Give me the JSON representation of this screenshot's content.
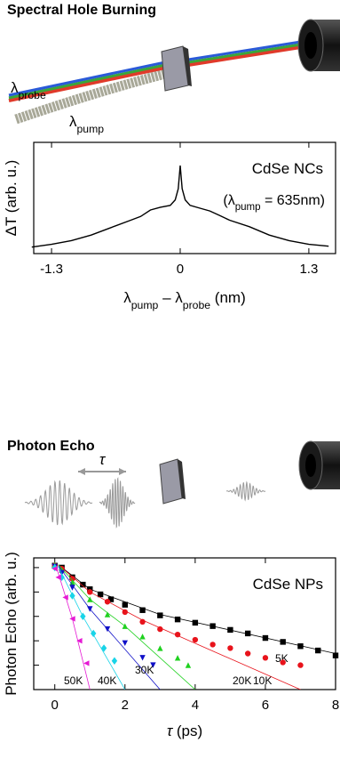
{
  "diagrams": [
    {
      "title": "Spectral Hole Burning",
      "probe_label": [
        "λ",
        "probe"
      ],
      "pump_label": [
        "λ",
        "pump"
      ]
    },
    {
      "title": "Photon Echo",
      "delay_label": "τ"
    }
  ],
  "chart_data": [
    {
      "type": "line",
      "title": "CdSe NCs",
      "annotation": [
        "(λ",
        "pump",
        " = 635nm)"
      ],
      "xlabel": [
        "λ",
        "pump",
        " – λ",
        "probe",
        " (nm)"
      ],
      "ylabel": "ΔT (arb. u.)",
      "x": [
        -1.5,
        -1.3,
        -1.1,
        -0.9,
        -0.7,
        -0.5,
        -0.4,
        -0.3,
        -0.2,
        -0.1,
        -0.05,
        -0.02,
        0,
        0.02,
        0.05,
        0.1,
        0.2,
        0.3,
        0.4,
        0.5,
        0.7,
        0.9,
        1.1,
        1.3,
        1.5
      ],
      "values": [
        0.07,
        0.1,
        0.14,
        0.2,
        0.28,
        0.36,
        0.4,
        0.47,
        0.5,
        0.52,
        0.58,
        0.7,
        0.95,
        0.7,
        0.58,
        0.52,
        0.49,
        0.46,
        0.41,
        0.36,
        0.29,
        0.2,
        0.14,
        0.1,
        0.08
      ],
      "color": "#000000",
      "xlim": [
        -1.48,
        1.57
      ],
      "ylim": [
        0,
        1.2
      ],
      "xticks": [
        -1.3,
        0,
        1.3
      ]
    },
    {
      "type": "scatter",
      "title": "CdSe NPs",
      "xlabel": [
        "τ",
        " (ps)"
      ],
      "ylabel": "Photon Echo (arb. u.)",
      "log_y": true,
      "xlim": [
        -0.6,
        8
      ],
      "ylim": [
        1e-05,
        2.5
      ],
      "xticks": [
        0,
        2,
        4,
        6,
        8
      ],
      "yticks": [
        1e-05,
        0.0001,
        0.001,
        0.01,
        0.1,
        1
      ],
      "series": [
        {
          "name": "5K",
          "color": "#000000",
          "marker": "square",
          "x": [
            0,
            0.2,
            0.5,
            0.8,
            1,
            1.3,
            1.6,
            2,
            2.5,
            3,
            3.5,
            4,
            4.5,
            5,
            5.5,
            6,
            6.5,
            7,
            7.5,
            8
          ],
          "values": [
            1.2,
            1.0,
            0.4,
            0.2,
            0.13,
            0.08,
            0.05,
            0.03,
            0.018,
            0.011,
            0.0075,
            0.0055,
            0.004,
            0.0028,
            0.002,
            0.0013,
            0.0009,
            0.0006,
            0.0004,
            0.00025
          ],
          "fit_x": [
            0.1,
            1,
            3,
            8
          ],
          "fit_values": [
            1.3,
            0.13,
            0.012,
            0.0003
          ]
        },
        {
          "name": "10K",
          "color": "#e8131b",
          "marker": "circle",
          "x": [
            0,
            0.2,
            0.5,
            1,
            1.5,
            2,
            2.5,
            3,
            3.5,
            4,
            4.5,
            5,
            5.5,
            6,
            6.5,
            7
          ],
          "values": [
            1.2,
            0.9,
            0.35,
            0.1,
            0.04,
            0.015,
            0.006,
            0.003,
            0.0018,
            0.0011,
            0.0007,
            0.0005,
            0.0003,
            0.0002,
            0.00013,
            0.0001
          ],
          "fit_x": [
            0.1,
            1,
            2.5,
            7
          ],
          "fit_values": [
            1.3,
            0.1,
            0.007,
            1e-05
          ]
        },
        {
          "name": "20K",
          "color": "#1fd11f",
          "marker": "triangle-up",
          "x": [
            0,
            0.2,
            0.5,
            1,
            1.5,
            2,
            2.5,
            3,
            3.5,
            3.8
          ],
          "values": [
            1.3,
            0.8,
            0.25,
            0.05,
            0.012,
            0.004,
            0.0015,
            0.0005,
            0.0002,
            0.0001
          ],
          "fit_x": [
            0.1,
            1,
            2,
            4
          ],
          "fit_values": [
            1.3,
            0.05,
            0.004,
            1e-05
          ]
        },
        {
          "name": "30K",
          "color": "#1010c8",
          "marker": "triangle-down",
          "x": [
            0,
            0.2,
            0.5,
            1,
            1.5,
            2,
            2.5,
            2.8
          ],
          "values": [
            1.1,
            0.6,
            0.15,
            0.02,
            0.003,
            0.0008,
            0.0002,
            0.0001
          ],
          "fit_x": [
            0.1,
            1,
            3
          ],
          "fit_values": [
            1.2,
            0.02,
            1e-05
          ]
        },
        {
          "name": "40K",
          "color": "#19d4e8",
          "marker": "diamond",
          "x": [
            0,
            0.2,
            0.5,
            0.8,
            1.1,
            1.4,
            1.7
          ],
          "values": [
            1.0,
            0.4,
            0.07,
            0.01,
            0.002,
            0.0005,
            0.00015
          ],
          "fit_x": [
            0.1,
            0.8,
            2
          ],
          "fit_values": [
            1.1,
            0.01,
            1e-05
          ]
        },
        {
          "name": "50K",
          "color": "#e619d4",
          "marker": "triangle-left",
          "x": [
            0,
            0.1,
            0.3,
            0.5,
            0.7,
            0.9
          ],
          "values": [
            0.9,
            0.4,
            0.06,
            0.008,
            0.001,
            0.00012
          ],
          "fit_x": [
            0.05,
            0.5,
            1
          ],
          "fit_values": [
            1.0,
            0.008,
            1e-05
          ]
        }
      ]
    }
  ]
}
